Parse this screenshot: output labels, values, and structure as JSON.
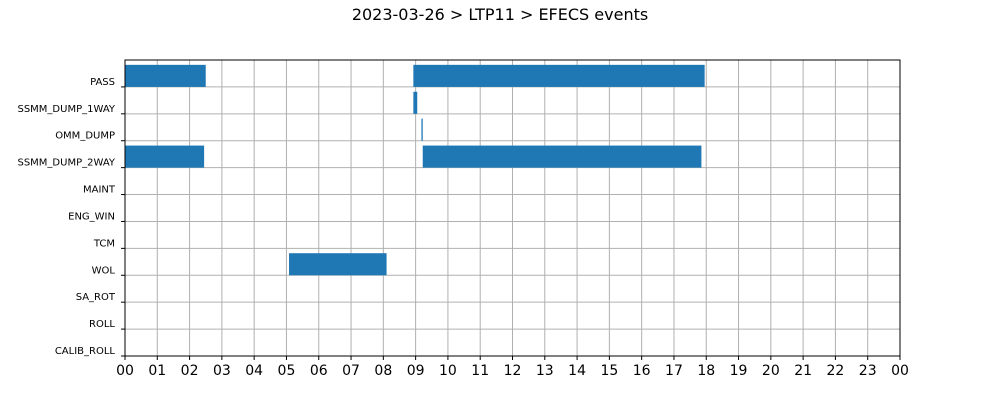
{
  "chart_data": {
    "type": "gantt",
    "title": "2023-03-26 > LTP11 > EFECS events",
    "xlabel": "",
    "ylabel": "",
    "x_unit": "hours",
    "xlim": [
      0,
      24
    ],
    "x_ticks": [
      {
        "value": 0,
        "label": "00"
      },
      {
        "value": 1,
        "label": "01"
      },
      {
        "value": 2,
        "label": "02"
      },
      {
        "value": 3,
        "label": "03"
      },
      {
        "value": 4,
        "label": "04"
      },
      {
        "value": 5,
        "label": "05"
      },
      {
        "value": 6,
        "label": "06"
      },
      {
        "value": 7,
        "label": "07"
      },
      {
        "value": 8,
        "label": "08"
      },
      {
        "value": 9,
        "label": "09"
      },
      {
        "value": 10,
        "label": "10"
      },
      {
        "value": 11,
        "label": "11"
      },
      {
        "value": 12,
        "label": "12"
      },
      {
        "value": 13,
        "label": "13"
      },
      {
        "value": 14,
        "label": "14"
      },
      {
        "value": 15,
        "label": "15"
      },
      {
        "value": 16,
        "label": "16"
      },
      {
        "value": 17,
        "label": "17"
      },
      {
        "value": 18,
        "label": "18"
      },
      {
        "value": 19,
        "label": "19"
      },
      {
        "value": 20,
        "label": "20"
      },
      {
        "value": 21,
        "label": "21"
      },
      {
        "value": 22,
        "label": "22"
      },
      {
        "value": 23,
        "label": "23"
      },
      {
        "value": 24,
        "label": "00"
      }
    ],
    "categories": [
      "PASS",
      "SSMM_DUMP_1WAY",
      "OMM_DUMP",
      "SSMM_DUMP_2WAY",
      "MAINT",
      "ENG_WIN",
      "TCM",
      "WOL",
      "SA_ROT",
      "ROLL",
      "CALIB_ROLL"
    ],
    "events": [
      {
        "category": "PASS",
        "start": 0.0,
        "end": 2.5
      },
      {
        "category": "PASS",
        "start": 8.93,
        "end": 17.95
      },
      {
        "category": "SSMM_DUMP_1WAY",
        "start": 8.93,
        "end": 9.05
      },
      {
        "category": "OMM_DUMP",
        "start": 9.18,
        "end": 9.22
      },
      {
        "category": "SSMM_DUMP_2WAY",
        "start": 0.0,
        "end": 2.45
      },
      {
        "category": "SSMM_DUMP_2WAY",
        "start": 9.22,
        "end": 17.85
      },
      {
        "category": "WOL",
        "start": 5.08,
        "end": 8.1
      }
    ],
    "grid": true,
    "colors": {
      "bar": "#1f77b4",
      "grid": "#b0b0b0",
      "axis": "#000000"
    }
  }
}
